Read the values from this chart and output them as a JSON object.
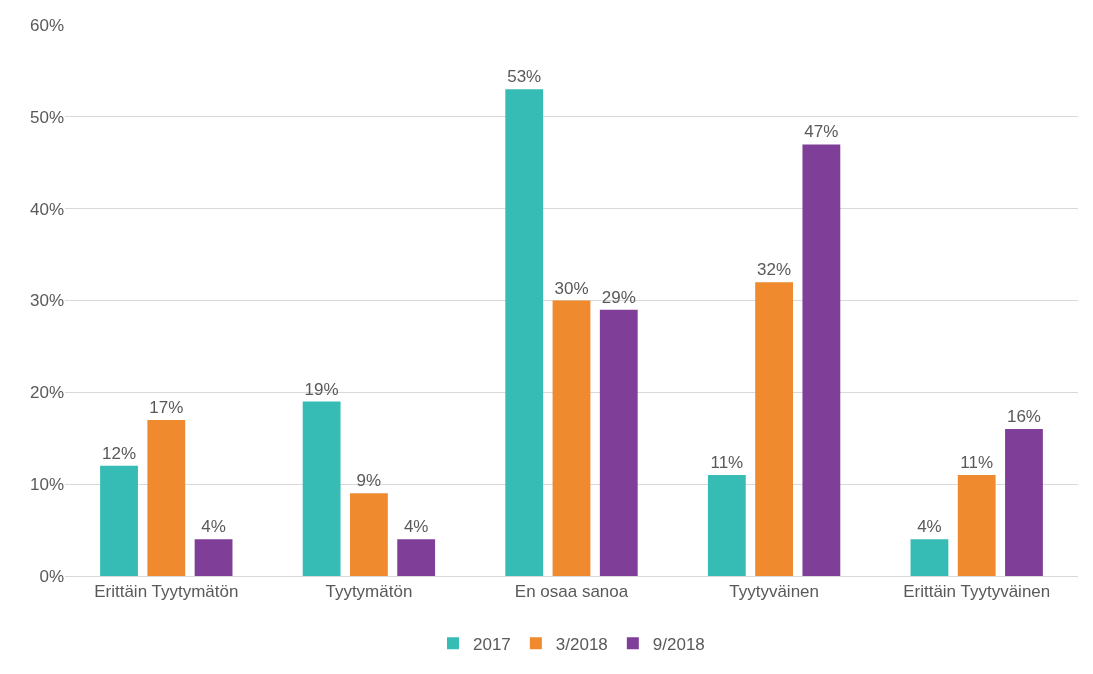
{
  "chart_data": {
    "type": "bar",
    "categories": [
      "Erittäin Tyytymätön",
      "Tyytymätön",
      "En osaa sanoa",
      "Tyytyväinen",
      "Erittäin Tyytyväinen"
    ],
    "series": [
      {
        "name": "2017",
        "color": "#36bbb5",
        "values": [
          12,
          19,
          53,
          11,
          4
        ],
        "value_labels": [
          "12%",
          "19%",
          "53%",
          "11%",
          "4%"
        ]
      },
      {
        "name": "3/2018",
        "color": "#f08a2f",
        "values": [
          17,
          9,
          30,
          32,
          11
        ],
        "value_labels": [
          "17%",
          "9%",
          "30%",
          "32%",
          "11%"
        ]
      },
      {
        "name": "9/2018",
        "color": "#7f3f98",
        "values": [
          4,
          4,
          29,
          47,
          16
        ],
        "value_labels": [
          "4%",
          "4%",
          "29%",
          "47%",
          "16%"
        ]
      }
    ],
    "ylim": [
      0,
      60
    ],
    "yticks": [
      {
        "value": 0,
        "label": "0%"
      },
      {
        "value": 10,
        "label": "10%"
      },
      {
        "value": 20,
        "label": "20%"
      },
      {
        "value": 30,
        "label": "30%"
      },
      {
        "value": 40,
        "label": "40%"
      },
      {
        "value": 50,
        "label": "50%"
      },
      {
        "value": 60,
        "label": "60%"
      }
    ],
    "grid": "y",
    "legend": "bottom"
  }
}
